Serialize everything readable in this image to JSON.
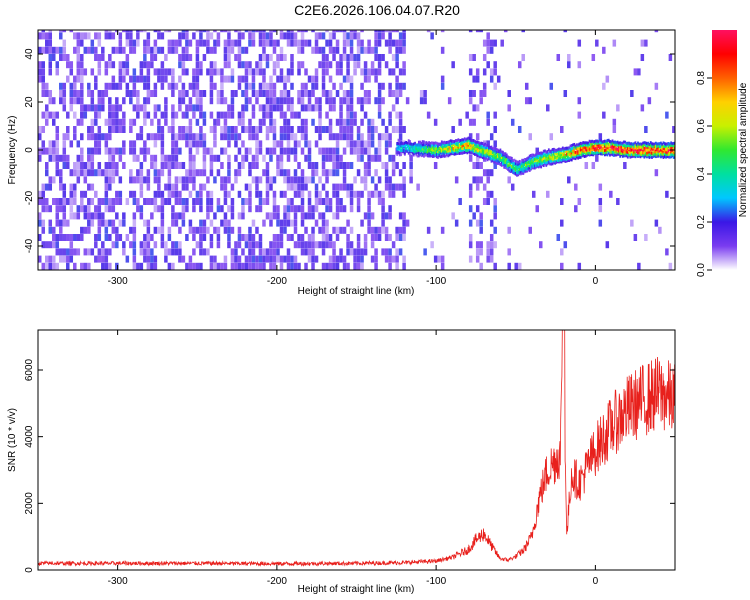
{
  "title": "C2E6.2026.106.04.07.R20",
  "chart_data": [
    {
      "type": "heatmap",
      "xlabel": "Height of straight line (km)",
      "ylabel": "Frequency (Hz)",
      "xlim": [
        -350,
        50
      ],
      "ylim": [
        -50,
        50
      ],
      "xticks": [
        -300,
        -200,
        -100,
        0
      ],
      "yticks": [
        -40,
        -20,
        0,
        20,
        40
      ],
      "colorbar": {
        "label": "Normalized spectral amplitude",
        "range": [
          0,
          1
        ],
        "ticks": [
          0.0,
          0.2,
          0.4,
          0.6,
          0.8
        ],
        "colors": [
          "#ffffff",
          "#7a3cf0",
          "#3a17e6",
          "#00c8ff",
          "#00e0a0",
          "#30e830",
          "#c8f000",
          "#ffd000",
          "#ff6000",
          "#ff0000",
          "#ff1060"
        ]
      },
      "ridge": {
        "x": [
          -120,
          -100,
          -80,
          -60,
          -50,
          -40,
          -30,
          -20,
          -10,
          0,
          10,
          20,
          50
        ],
        "frequency": [
          1,
          0,
          2,
          -3,
          -8,
          -5,
          -3,
          -2,
          0,
          1,
          1,
          0,
          0
        ],
        "peak_amplitude": [
          0.35,
          0.6,
          0.75,
          0.55,
          0.5,
          0.55,
          0.6,
          0.7,
          0.85,
          0.9,
          0.95,
          0.95,
          0.95
        ]
      },
      "noise_region": {
        "x_from": -350,
        "x_to": -120,
        "amplitude": 0.15
      }
    },
    {
      "type": "line",
      "xlabel": "Height of straight line (km)",
      "ylabel": "SNR (10 * v/v)",
      "xlim": [
        -350,
        50
      ],
      "ylim": [
        0,
        7200
      ],
      "xticks": [
        -300,
        -200,
        -100,
        0
      ],
      "yticks": [
        0,
        2000,
        4000,
        6000
      ],
      "color": "#e8201c",
      "series": [
        {
          "x": [
            -350,
            -300,
            -250,
            -200,
            -150,
            -120,
            -100,
            -90,
            -80,
            -75,
            -70,
            -65,
            -60,
            -55,
            -50,
            -45,
            -40,
            -35,
            -30,
            -25,
            -22,
            -20,
            -18,
            -15,
            -10,
            -5,
            0,
            10,
            20,
            30,
            40,
            50
          ],
          "values": [
            200,
            200,
            200,
            190,
            200,
            220,
            270,
            380,
            600,
            900,
            1100,
            700,
            350,
            300,
            400,
            600,
            1000,
            2200,
            3000,
            3300,
            3500,
            7200,
            1000,
            2900,
            2600,
            3100,
            3600,
            4300,
            4800,
            5100,
            5300,
            5100
          ]
        }
      ]
    }
  ]
}
